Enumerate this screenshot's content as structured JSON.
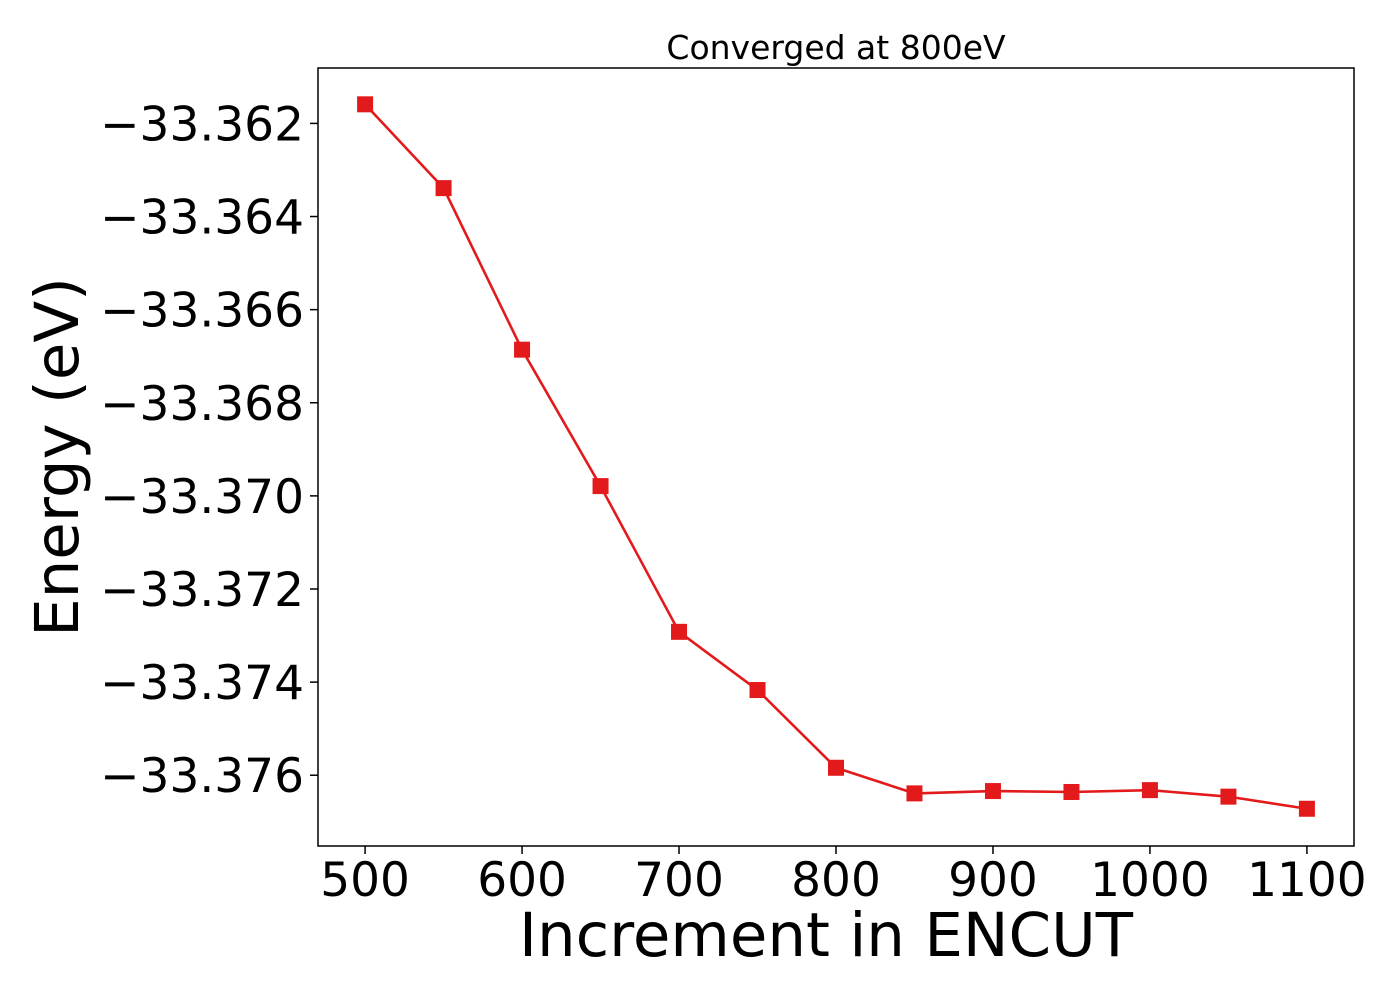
{
  "chart_data": {
    "type": "line",
    "title": "Converged at 800eV",
    "xlabel": "Increment in ENCUT",
    "ylabel": "Energy (eV)",
    "x": [
      500,
      550,
      600,
      650,
      700,
      750,
      800,
      850,
      900,
      950,
      1000,
      1050,
      1100
    ],
    "series": [
      {
        "values": [
          -33.36159,
          -33.36339,
          -33.36686,
          -33.36979,
          -33.37292,
          -33.37417,
          -33.37584,
          -33.37639,
          -33.37634,
          -33.37636,
          -33.37632,
          -33.37646,
          -33.37672
        ],
        "color": "#e31a1c",
        "marker": "square"
      }
    ],
    "xlim": [
      470,
      1130
    ],
    "ylim": [
      -33.37752,
      -33.36081
    ],
    "xticks": [
      500,
      600,
      700,
      800,
      900,
      1000,
      1100
    ],
    "xtick_labels": [
      "500",
      "600",
      "700",
      "800",
      "900",
      "1000",
      "1100"
    ],
    "yticks": [
      -33.362,
      -33.364,
      -33.366,
      -33.368,
      -33.37,
      -33.372,
      -33.374,
      -33.376
    ],
    "ytick_labels": [
      "−33.362",
      "−33.364",
      "−33.366",
      "−33.368",
      "−33.370",
      "−33.372",
      "−33.374",
      "−33.376"
    ],
    "grid": false,
    "legend": "none"
  }
}
